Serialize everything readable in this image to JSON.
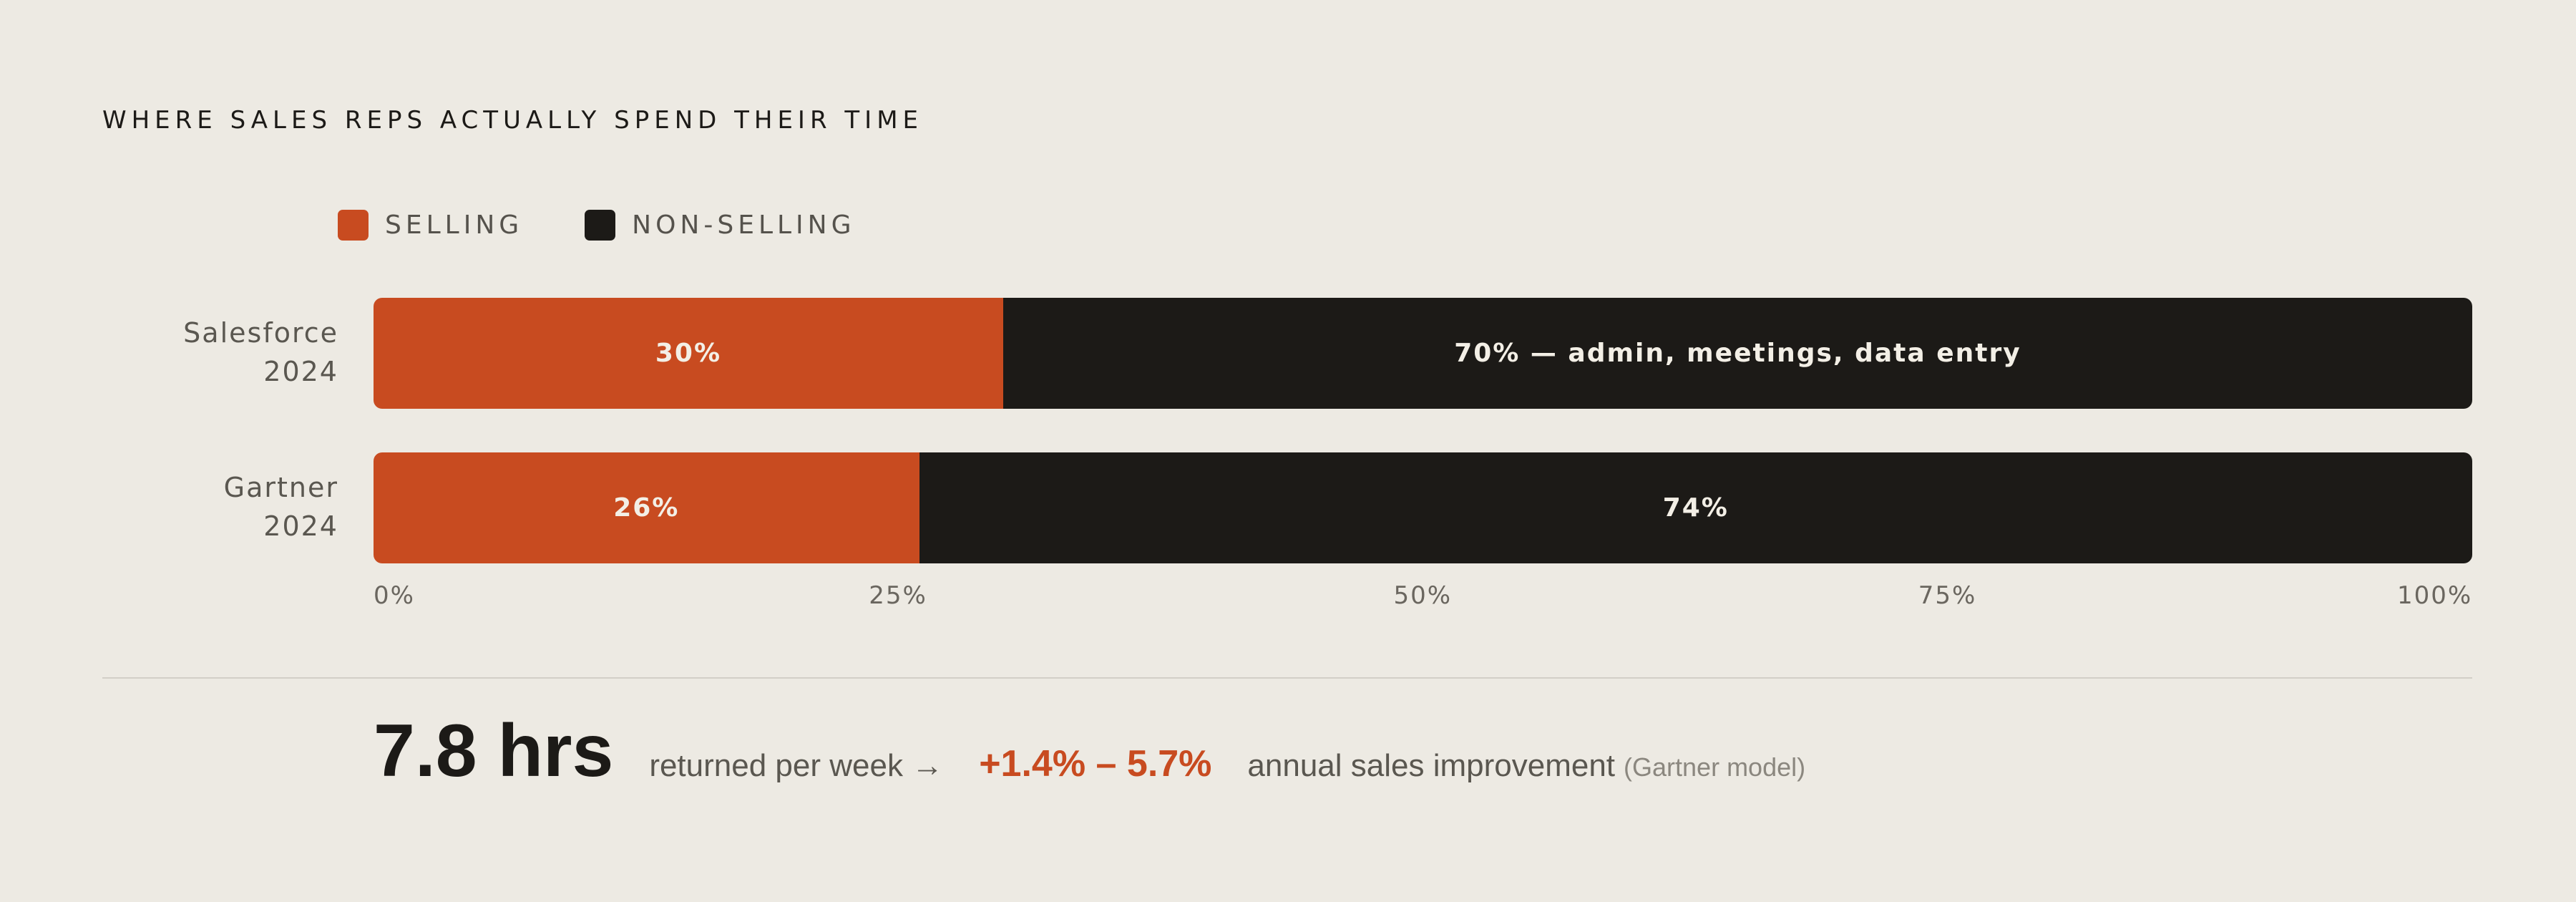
{
  "title": "WHERE SALES REPS ACTUALLY SPEND THEIR TIME",
  "colors": {
    "selling": "#c84b20",
    "non_selling": "#1c1a17",
    "background": "#edeae3"
  },
  "chart_data": {
    "type": "bar",
    "orientation": "horizontal",
    "stacked": true,
    "categories": [
      "Salesforce 2024",
      "Gartner 2024"
    ],
    "category_lines": [
      [
        "Salesforce",
        "2024"
      ],
      [
        "Gartner",
        "2024"
      ]
    ],
    "series": [
      {
        "name": "SELLING",
        "values": [
          30,
          26
        ],
        "labels": [
          "30%",
          "26%"
        ]
      },
      {
        "name": "NON-SELLING",
        "values": [
          70,
          74
        ],
        "labels": [
          "70% — admin, meetings, data entry",
          "74%"
        ]
      }
    ],
    "xlim": [
      0,
      100
    ],
    "x_ticks": [
      "0%",
      "25%",
      "50%",
      "75%",
      "100%"
    ],
    "legend_position": "top-left",
    "grid": false
  },
  "stats": {
    "hours": "7.8 hrs",
    "hours_text": "returned per week →",
    "improvement": "+1.4% – 5.7%",
    "improvement_text": "annual sales improvement",
    "note": "(Gartner model)"
  }
}
